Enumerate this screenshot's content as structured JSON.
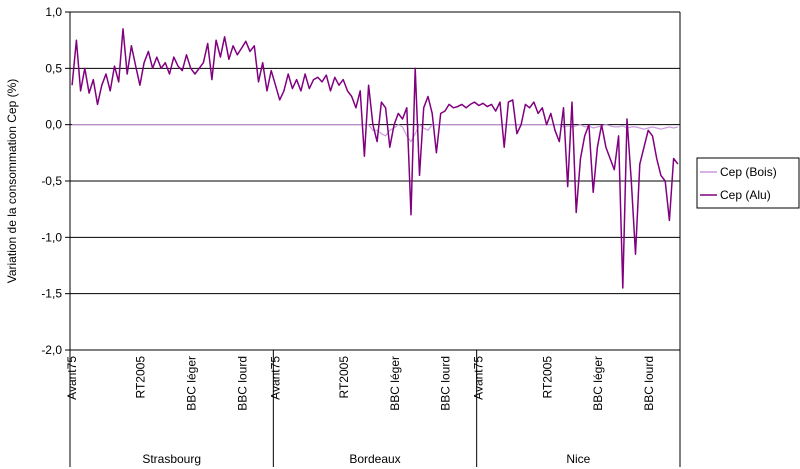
{
  "chart_data": {
    "type": "line",
    "title": "",
    "ylabel": "Variation de la consommation Cep (%)",
    "xlabel": "",
    "ylim": [
      -2.0,
      1.0
    ],
    "y_ticks": [
      "1,0",
      "0,5",
      "0,0",
      "-0,5",
      "-1,0",
      "-1,5",
      "-2,0"
    ],
    "y_tick_values": [
      1.0,
      0.5,
      0.0,
      -0.5,
      -1.0,
      -1.5,
      -2.0
    ],
    "grid": "horizontal",
    "legend_position": "right",
    "groups": [
      {
        "label": "Strasbourg",
        "subcategories": [
          "Avant75",
          "RT2005",
          "BBC léger",
          "BBC lourd"
        ]
      },
      {
        "label": "Bordeaux",
        "subcategories": [
          "Avant75",
          "RT2005",
          "BBC léger",
          "BBC lourd"
        ]
      },
      {
        "label": "Nice",
        "subcategories": [
          "Avant75",
          "RT2005",
          "BBC léger",
          "BBC lourd"
        ]
      }
    ],
    "x_count": 144,
    "series": [
      {
        "name": "Cep (Bois)",
        "color": "#cc99dd",
        "values": [
          0.0,
          0.0,
          0.0,
          0.0,
          0.0,
          0.0,
          0.0,
          0.0,
          0.0,
          0.0,
          0.0,
          0.0,
          0.0,
          0.0,
          0.0,
          0.0,
          0.0,
          0.0,
          0.0,
          0.0,
          0.0,
          0.0,
          0.0,
          0.0,
          0.0,
          0.0,
          0.0,
          0.0,
          0.0,
          0.0,
          0.0,
          0.0,
          0.0,
          0.0,
          0.0,
          0.0,
          0.0,
          0.0,
          0.0,
          0.0,
          0.0,
          0.0,
          0.0,
          0.0,
          0.0,
          0.0,
          0.0,
          0.0,
          0.0,
          0.0,
          0.0,
          0.0,
          0.0,
          0.0,
          0.0,
          0.0,
          0.0,
          0.0,
          0.0,
          0.0,
          0.0,
          0.0,
          0.0,
          0.0,
          0.0,
          0.0,
          0.0,
          0.0,
          0.0,
          0.0,
          0.0,
          -0.05,
          -0.05,
          -0.08,
          -0.1,
          -0.05,
          -0.03,
          0.0,
          -0.02,
          -0.1,
          -0.15,
          -0.08,
          0.0,
          -0.03,
          -0.05,
          0.0,
          0.0,
          0.0,
          0.0,
          0.0,
          0.0,
          0.0,
          0.0,
          0.0,
          0.0,
          0.0,
          0.0,
          0.0,
          0.0,
          0.0,
          0.0,
          0.0,
          0.0,
          0.0,
          0.0,
          0.0,
          0.0,
          0.0,
          0.0,
          0.0,
          0.0,
          0.0,
          0.0,
          0.0,
          0.0,
          0.0,
          -0.02,
          -0.01,
          -0.02,
          -0.01,
          0.0,
          -0.02,
          -0.01,
          -0.03,
          -0.02,
          -0.01,
          0.0,
          -0.01,
          -0.02,
          -0.02,
          -0.01,
          -0.03,
          -0.02,
          -0.02,
          -0.03,
          -0.04,
          -0.03,
          -0.02,
          -0.03,
          -0.04,
          -0.03,
          -0.02,
          -0.03,
          -0.02
        ]
      },
      {
        "name": "Cep (Alu)",
        "color": "#800080",
        "values": [
          0.35,
          0.75,
          0.3,
          0.5,
          0.28,
          0.4,
          0.18,
          0.35,
          0.45,
          0.3,
          0.52,
          0.38,
          0.85,
          0.45,
          0.7,
          0.52,
          0.35,
          0.55,
          0.65,
          0.5,
          0.6,
          0.5,
          0.55,
          0.45,
          0.6,
          0.52,
          0.48,
          0.62,
          0.5,
          0.45,
          0.5,
          0.55,
          0.72,
          0.4,
          0.75,
          0.6,
          0.78,
          0.58,
          0.7,
          0.62,
          0.68,
          0.74,
          0.65,
          0.7,
          0.38,
          0.55,
          0.3,
          0.48,
          0.35,
          0.22,
          0.3,
          0.45,
          0.32,
          0.4,
          0.3,
          0.45,
          0.32,
          0.4,
          0.42,
          0.38,
          0.44,
          0.3,
          0.42,
          0.35,
          0.4,
          0.3,
          0.25,
          0.15,
          0.3,
          -0.28,
          0.35,
          0.0,
          -0.15,
          0.2,
          0.15,
          -0.2,
          0.0,
          0.1,
          0.05,
          0.15,
          -0.8,
          0.5,
          -0.45,
          0.15,
          0.25,
          0.1,
          -0.25,
          0.1,
          0.12,
          0.18,
          0.15,
          0.16,
          0.18,
          0.15,
          0.18,
          0.2,
          0.17,
          0.19,
          0.16,
          0.18,
          0.12,
          0.2,
          -0.2,
          0.2,
          0.22,
          -0.08,
          0.0,
          0.18,
          0.15,
          0.2,
          0.1,
          0.15,
          0.0,
          0.1,
          -0.05,
          -0.15,
          0.15,
          -0.55,
          0.2,
          -0.78,
          -0.3,
          -0.1,
          0.0,
          -0.6,
          -0.2,
          0.0,
          -0.2,
          -0.3,
          -0.4,
          -0.1,
          -1.45,
          0.05,
          -0.5,
          -1.15,
          -0.35,
          -0.2,
          -0.05,
          -0.1,
          -0.3,
          -0.45,
          -0.5,
          -0.85,
          -0.3,
          -0.35
        ]
      }
    ]
  }
}
